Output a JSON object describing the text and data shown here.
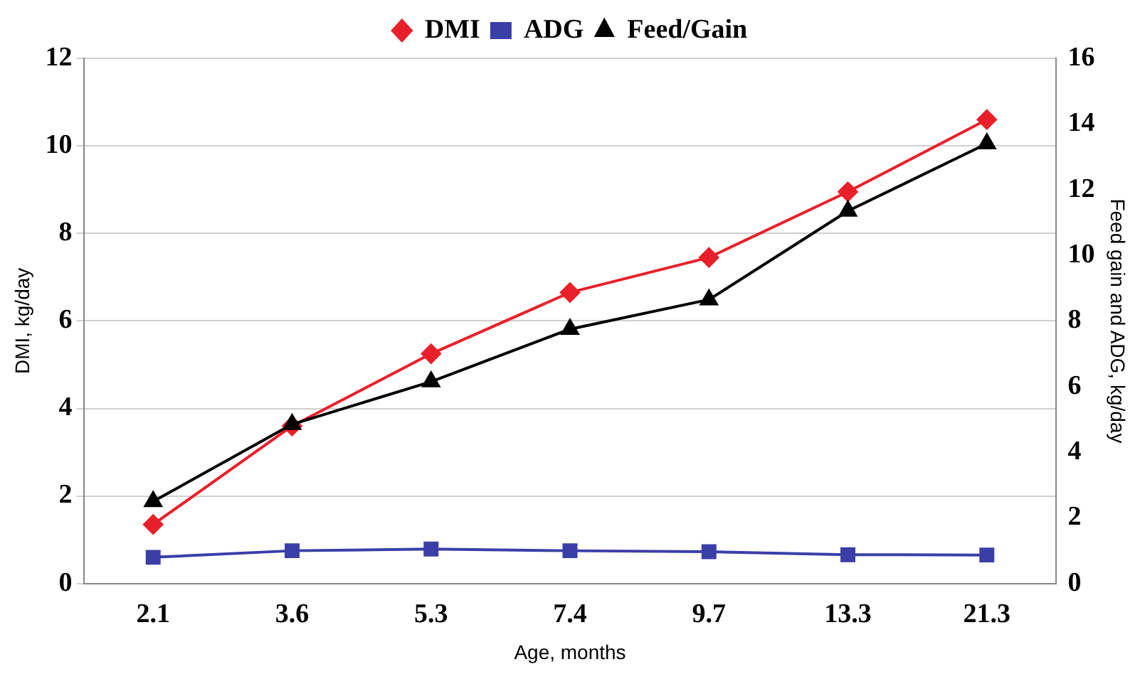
{
  "chart_data": {
    "type": "line",
    "xlabel": "Age, months",
    "ylabel": "DMI, kg/day",
    "y2label": "Feed gain and ADG, kg/day",
    "categories": [
      "2.1",
      "3.6",
      "5.3",
      "7.4",
      "9.7",
      "13.3",
      "21.3"
    ],
    "series": [
      {
        "name": "DMI",
        "color": "#e8202a",
        "marker": "diamond",
        "axis": "y",
        "values": [
          1.35,
          3.6,
          5.25,
          6.65,
          7.45,
          8.95,
          10.6
        ]
      },
      {
        "name": "ADG",
        "color": "#3a3fa8",
        "marker": "square",
        "axis": "y2",
        "values": [
          0.8,
          1.0,
          1.05,
          1.0,
          0.97,
          0.88,
          0.87
        ]
      },
      {
        "name": "Feed/Gain",
        "color": "#000000",
        "marker": "triangle",
        "axis": "y2",
        "values": [
          2.5,
          4.85,
          6.15,
          7.75,
          8.65,
          11.35,
          13.4
        ]
      }
    ],
    "ylim": [
      0,
      12
    ],
    "yticks": [
      0,
      2,
      4,
      6,
      8,
      10,
      12
    ],
    "y2lim": [
      0,
      16
    ],
    "y2ticks": [
      0,
      2,
      4,
      6,
      8,
      10,
      12,
      14,
      16
    ],
    "grid": "y",
    "legend": "top",
    "line_style": "solid"
  }
}
